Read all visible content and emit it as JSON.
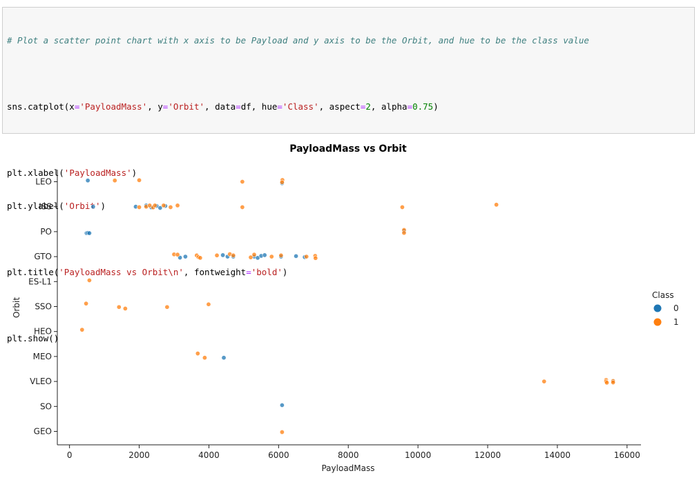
{
  "code": {
    "comment": "# Plot a scatter point chart with x axis to be Payload and y axis to be the Orbit, and hue to be the class value",
    "line1": {
      "a": "sns.catplot(x",
      "b": "'PayloadMass'",
      "c": ", y",
      "d": "'Orbit'",
      "e": ", data",
      "f": "df, hue",
      "g": "'Class'",
      "h": ", aspect",
      "i": "2",
      "j": ", alpha",
      "k": "0.75",
      "l": ")"
    },
    "xlabel_call": {
      "a": "plt.xlabel(",
      "b": "'PayloadMass'",
      "c": ")"
    },
    "ylabel_call": {
      "a": "plt.ylabel(",
      "b": "'Orbit'",
      "c": ")"
    },
    "title_call": {
      "a": "plt.title(",
      "b": "'PayloadMass vs Orbit\\n'",
      "c": ", fontweight",
      "d": "'bold'",
      "e": ")"
    },
    "show_call": "plt.show()",
    "eq": "="
  },
  "chart_data": {
    "type": "scatter",
    "title": "PayloadMass vs Orbit",
    "xlabel": "PayloadMass",
    "ylabel": "Orbit",
    "xlim": [
      -350,
      16400
    ],
    "xticks": [
      0,
      2000,
      4000,
      6000,
      8000,
      10000,
      12000,
      14000,
      16000
    ],
    "categories": [
      "LEO",
      "ISS",
      "PO",
      "GTO",
      "ES-L1",
      "SSO",
      "HEO",
      "MEO",
      "VLEO",
      "SO",
      "GEO"
    ],
    "legend": {
      "title": "Class",
      "placement": "right",
      "entries": [
        "0",
        "1"
      ]
    },
    "colors": {
      "0": "#1f77b4",
      "1": "#ff7f0e"
    },
    "series": [
      {
        "name": "0",
        "points": [
          [
            525,
            "LEO",
            -0.05
          ],
          [
            6100,
            "LEO",
            0.06
          ],
          [
            677,
            "ISS",
            0.0
          ],
          [
            1900,
            "ISS",
            0.0
          ],
          [
            2200,
            "ISS",
            -0.05
          ],
          [
            2350,
            "ISS",
            0.03
          ],
          [
            2500,
            "ISS",
            -0.03
          ],
          [
            2600,
            "ISS",
            0.05
          ],
          [
            2750,
            "ISS",
            -0.03
          ],
          [
            490,
            "PO",
            0.06
          ],
          [
            530,
            "PO",
            0.05
          ],
          [
            570,
            "PO",
            0.06
          ],
          [
            9600,
            "PO",
            -0.02
          ],
          [
            3170,
            "GTO",
            0.04
          ],
          [
            3325,
            "GTO",
            0.0
          ],
          [
            4400,
            "GTO",
            -0.06
          ],
          [
            4535,
            "GTO",
            0.0
          ],
          [
            4700,
            "GTO",
            0.0
          ],
          [
            5300,
            "GTO",
            0.0
          ],
          [
            5400,
            "GTO",
            0.05
          ],
          [
            5500,
            "GTO",
            -0.03
          ],
          [
            5600,
            "GTO",
            -0.06
          ],
          [
            6070,
            "GTO",
            0.0
          ],
          [
            6500,
            "GTO",
            -0.02
          ],
          [
            6750,
            "GTO",
            0.02
          ],
          [
            4428,
            "MEO",
            0.05
          ],
          [
            15600,
            "VLEO",
            0.0
          ],
          [
            6100,
            "SO",
            -0.05
          ]
        ]
      },
      {
        "name": "1",
        "points": [
          [
            1300,
            "LEO",
            -0.05
          ],
          [
            2000,
            "LEO",
            -0.06
          ],
          [
            4960,
            "LEO",
            0.0
          ],
          [
            6110,
            "LEO",
            -0.07
          ],
          [
            6100,
            "LEO",
            0.02
          ],
          [
            2000,
            "ISS",
            0.02
          ],
          [
            2200,
            "ISS",
            0.0
          ],
          [
            2300,
            "ISS",
            -0.05
          ],
          [
            2400,
            "ISS",
            0.03
          ],
          [
            2450,
            "ISS",
            -0.05
          ],
          [
            2700,
            "ISS",
            -0.05
          ],
          [
            2900,
            "ISS",
            0.02
          ],
          [
            3100,
            "ISS",
            -0.05
          ],
          [
            4960,
            "ISS",
            0.02
          ],
          [
            9550,
            "ISS",
            0.02
          ],
          [
            12250,
            "ISS",
            -0.08
          ],
          [
            9600,
            "PO",
            -0.07
          ],
          [
            9600,
            "PO",
            0.05
          ],
          [
            3000,
            "GTO",
            -0.09
          ],
          [
            3100,
            "GTO",
            -0.08
          ],
          [
            3650,
            "GTO",
            -0.05
          ],
          [
            3700,
            "GTO",
            0.02
          ],
          [
            3750,
            "GTO",
            0.05
          ],
          [
            4230,
            "GTO",
            -0.05
          ],
          [
            4600,
            "GTO",
            -0.1
          ],
          [
            4700,
            "GTO",
            -0.05
          ],
          [
            5200,
            "GTO",
            0.03
          ],
          [
            5300,
            "GTO",
            -0.08
          ],
          [
            5800,
            "GTO",
            0.0
          ],
          [
            6070,
            "GTO",
            -0.05
          ],
          [
            6800,
            "GTO",
            0.0
          ],
          [
            7050,
            "GTO",
            -0.03
          ],
          [
            7060,
            "GTO",
            0.06
          ],
          [
            570,
            "ES-L1",
            -0.05
          ],
          [
            475,
            "SSO",
            -0.12
          ],
          [
            1420,
            "SSO",
            0.02
          ],
          [
            1600,
            "SSO",
            0.08
          ],
          [
            2800,
            "SSO",
            0.02
          ],
          [
            3990,
            "SSO",
            -0.09
          ],
          [
            360,
            "HEO",
            -0.07
          ],
          [
            3680,
            "MEO",
            -0.12
          ],
          [
            3880,
            "MEO",
            0.05
          ],
          [
            13620,
            "VLEO",
            0.0
          ],
          [
            15400,
            "VLEO",
            -0.06
          ],
          [
            15400,
            "VLEO",
            0.0
          ],
          [
            15420,
            "VLEO",
            0.05
          ],
          [
            15600,
            "VLEO",
            -0.02
          ],
          [
            15600,
            "VLEO",
            0.04
          ],
          [
            6100,
            "GEO",
            0.03
          ]
        ]
      }
    ]
  }
}
